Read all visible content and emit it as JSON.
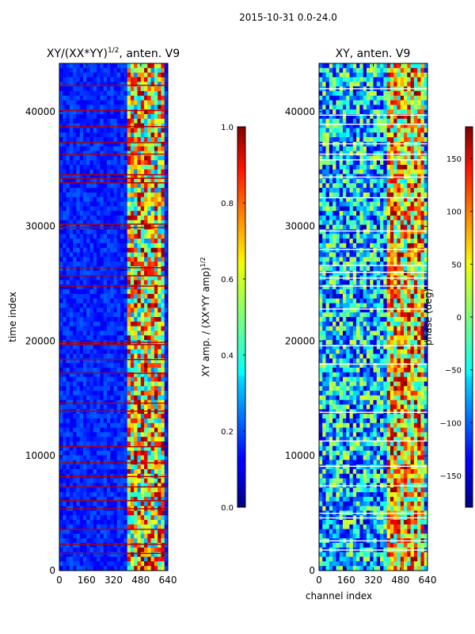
{
  "figure": {
    "suptitle": "2015-10-31 0.0-24.0"
  },
  "chart_data": [
    {
      "type": "heatmap",
      "title_text": "XY/(XX*YY)",
      "title_exp": "1/2",
      "title_suffix": ", anten. V9",
      "xlabel": "",
      "ylabel": "time index",
      "xlim": [
        0,
        640
      ],
      "ylim": [
        0,
        44200
      ],
      "xticks": [
        0,
        160,
        320,
        480,
        640
      ],
      "yticks": [
        0,
        10000,
        20000,
        30000,
        40000
      ],
      "colormap": "jet",
      "colorbar": {
        "label_text": "XY amp. / (XX*YY amp)",
        "label_exp": "1/2",
        "range": [
          0.0,
          1.0
        ],
        "ticks": [
          "0.0",
          "0.2",
          "0.4",
          "0.6",
          "0.8",
          "1.0"
        ]
      },
      "bright_channel_range": [
        400,
        620
      ],
      "flag_rows": [
        1500,
        2300,
        3600,
        5400,
        6100,
        7300,
        8200,
        9400,
        10800,
        13900,
        14600,
        17200,
        18400,
        19700,
        19900,
        24800,
        25700,
        26400,
        29900,
        30200,
        33800,
        34200,
        34500,
        36300,
        37300,
        38700,
        40100,
        42300
      ]
    },
    {
      "type": "heatmap",
      "title_text": "XY, anten. V9",
      "xlabel": "channel index",
      "ylabel": "",
      "xlim": [
        0,
        640
      ],
      "ylim": [
        0,
        44200
      ],
      "xticks": [
        0,
        160,
        320,
        480,
        640
      ],
      "yticks": [
        0,
        10000,
        20000,
        30000,
        40000
      ],
      "colormap": "jet",
      "colorbar": {
        "label_text": "phase (deg)",
        "range": [
          -180,
          180
        ],
        "ticks": [
          "150",
          "100",
          "50",
          "0",
          "−50",
          "−100",
          "−150"
        ]
      },
      "bright_channel_range": [
        400,
        620
      ],
      "flag_rows": [
        1800,
        2600,
        4600,
        5000,
        7400,
        9100,
        11300,
        13800,
        18000,
        19600,
        22800,
        24800,
        25500,
        26000,
        26600,
        28000,
        29600,
        32500,
        34300,
        35800,
        36300,
        37200,
        38900,
        39700,
        42000
      ]
    }
  ]
}
